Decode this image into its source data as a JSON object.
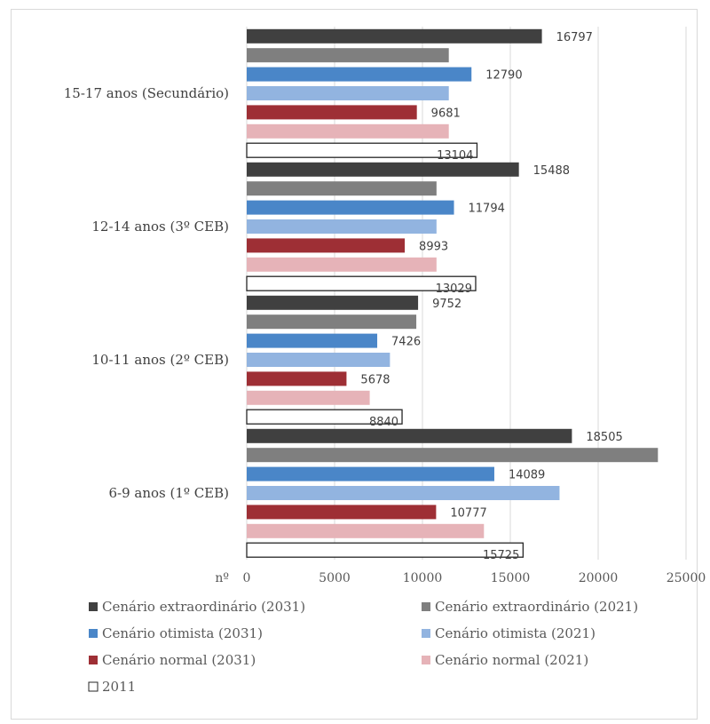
{
  "chart_data": {
    "type": "bar",
    "orientation": "horizontal",
    "categories": [
      "15-17 anos (Secundário)",
      "12-14 anos (3º CEB)",
      "10-11 anos (2º CEB)",
      "6-9 anos (1º CEB)"
    ],
    "series": [
      {
        "name": "Cenário extraordinário (2031)",
        "color": "#404040",
        "values": [
          16797,
          15488,
          9752,
          18505
        ],
        "labels": [
          "16797",
          "15488",
          "9752",
          "18505"
        ]
      },
      {
        "name": "Cenário extraordinário (2021)",
        "color": "#7f7f7f",
        "values": [
          11500,
          10800,
          9650,
          23400
        ],
        "labels": [
          "",
          "",
          "",
          ""
        ]
      },
      {
        "name": "Cenário otimista (2031)",
        "color": "#4a86c8",
        "values": [
          12790,
          11794,
          7426,
          14089
        ],
        "labels": [
          "12790",
          "11794",
          "7426",
          "14089"
        ]
      },
      {
        "name": "Cenário otimista (2021)",
        "color": "#92b4e0",
        "values": [
          11500,
          10800,
          8150,
          17800
        ],
        "labels": [
          "",
          "",
          "",
          ""
        ]
      },
      {
        "name": "Cenário normal (2031)",
        "color": "#9e2f35",
        "values": [
          9681,
          8993,
          5678,
          10777
        ],
        "labels": [
          "9681",
          "8993",
          "5678",
          "10777"
        ]
      },
      {
        "name": "Cenário normal (2021)",
        "color": "#e6b3b8",
        "values": [
          11500,
          10800,
          7000,
          13500
        ],
        "labels": [
          "",
          "",
          "",
          ""
        ]
      },
      {
        "name": "2011",
        "color": "#ffffff",
        "outline": "#262626",
        "values": [
          13104,
          13029,
          8840,
          15725
        ],
        "labels": [
          "13104",
          "13029",
          "8840",
          "15725"
        ]
      }
    ],
    "xaxis_label": "nº",
    "xticks": [
      "0",
      "5000",
      "10000",
      "15000",
      "20000",
      "25000"
    ],
    "xlim": [
      0,
      25000
    ],
    "grid": "vertical",
    "legend_position": "bottom"
  }
}
